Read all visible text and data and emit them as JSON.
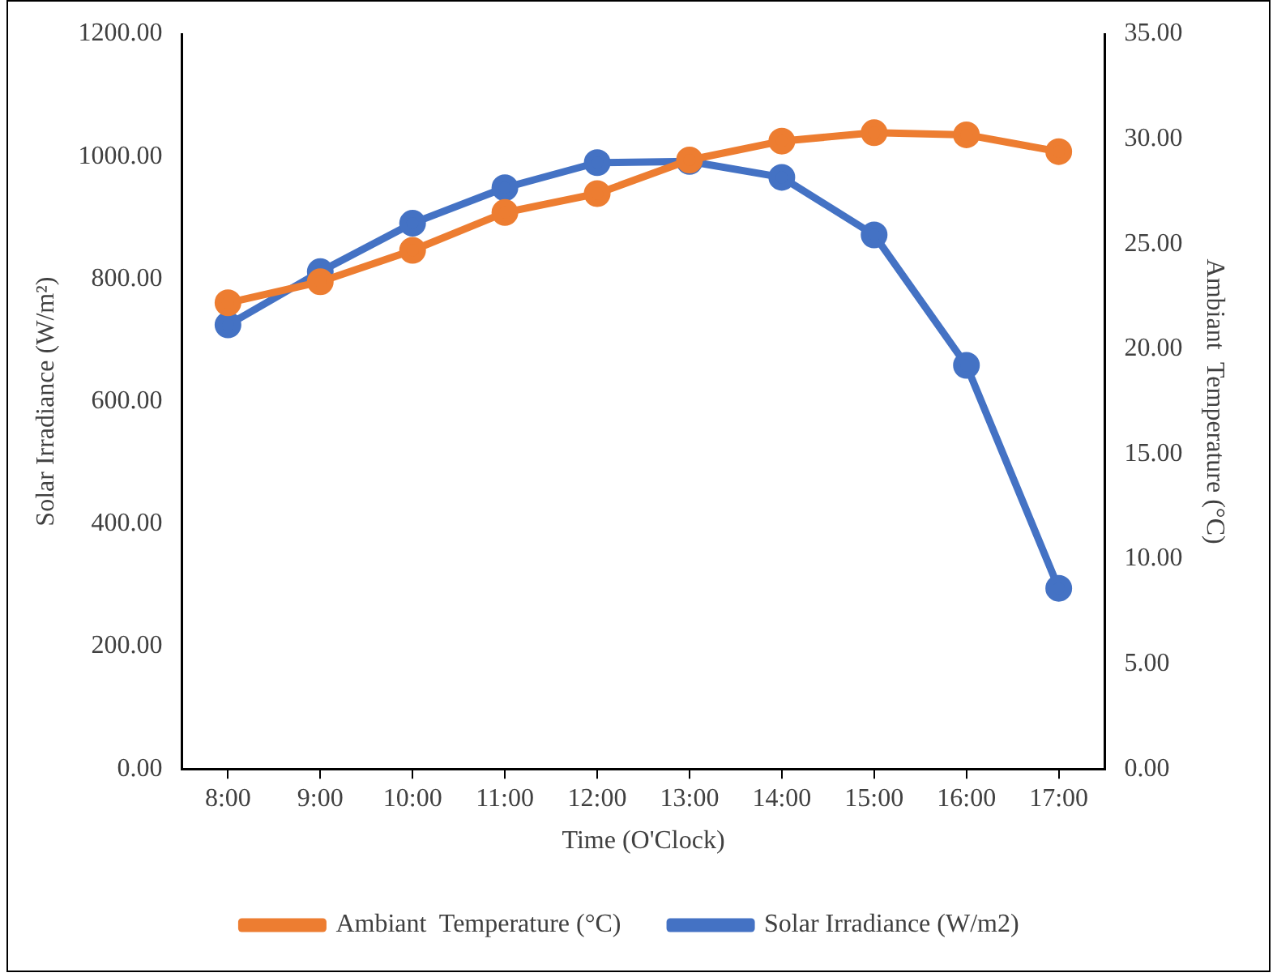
{
  "chart_data": {
    "type": "line",
    "xlabel": "Time (O'Clock)",
    "ylabel": "Solar Irradiance (W/m²)",
    "y2label": "Ambiant  Temperature (°C)",
    "categories": [
      "8:00",
      "9:00",
      "10:00",
      "11:00",
      "12:00",
      "13:00",
      "14:00",
      "15:00",
      "16:00",
      "17:00"
    ],
    "series": [
      {
        "name": "Solar Irradiance (W/m2)",
        "color": "#4472c4",
        "values": [
          725,
          812,
          891,
          949,
          990,
          992,
          966,
          872,
          659,
          295
        ]
      },
      {
        "name": "Ambiant  Temperature (°C)",
        "color": "#ed7d31",
        "axis": "y2",
        "values": [
          22.2,
          23.2,
          24.7,
          26.5,
          27.4,
          29.0,
          29.9,
          30.3,
          30.2,
          29.4
        ]
      }
    ],
    "ylim": [
      0,
      1200
    ],
    "yticks": [
      {
        "value": 0,
        "label": "0.00"
      },
      {
        "value": 200,
        "label": "200.00"
      },
      {
        "value": 400,
        "label": "400.00"
      },
      {
        "value": 600,
        "label": "600.00"
      },
      {
        "value": 800,
        "label": "800.00"
      },
      {
        "value": 1000,
        "label": "1000.00"
      },
      {
        "value": 1200,
        "label": "1200.00"
      }
    ],
    "y2lim": [
      0,
      35
    ],
    "y2ticks": [
      {
        "value": 0,
        "label": "0.00"
      },
      {
        "value": 5,
        "label": "5.00"
      },
      {
        "value": 10,
        "label": "10.00"
      },
      {
        "value": 15,
        "label": "15.00"
      },
      {
        "value": 20,
        "label": "20.00"
      },
      {
        "value": 25,
        "label": "25.00"
      },
      {
        "value": 30,
        "label": "30.00"
      },
      {
        "value": 35,
        "label": "35.00"
      }
    ],
    "grid": false,
    "legend": "bottom",
    "marker": "circle",
    "line_style": "solid"
  }
}
